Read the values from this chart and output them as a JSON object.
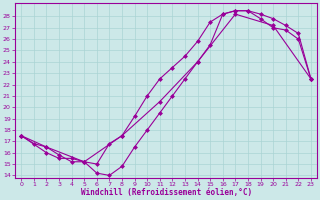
{
  "xlabel": "Windchill (Refroidissement éolien,°C)",
  "xlim_min": -0.5,
  "xlim_max": 23.5,
  "ylim_min": 13.8,
  "ylim_max": 29.2,
  "yticks": [
    14,
    15,
    16,
    17,
    18,
    19,
    20,
    21,
    22,
    23,
    24,
    25,
    26,
    27,
    28
  ],
  "xticks": [
    0,
    1,
    2,
    3,
    4,
    5,
    6,
    7,
    8,
    9,
    10,
    11,
    12,
    13,
    14,
    15,
    16,
    17,
    18,
    19,
    20,
    21,
    22,
    23
  ],
  "line_color": "#990099",
  "marker": "D",
  "marker_size": 2.5,
  "lw": 0.8,
  "bg_color": "#cce8e8",
  "grid_color": "#aad4d4",
  "line1_x": [
    0,
    1,
    2,
    3,
    4,
    5,
    6,
    7,
    8,
    9,
    10,
    11,
    12,
    13,
    14,
    15,
    16,
    17,
    18,
    19,
    20,
    21,
    22,
    23
  ],
  "line1_y": [
    17.5,
    16.8,
    16.5,
    15.8,
    15.2,
    15.2,
    14.2,
    14.0,
    14.8,
    16.5,
    18.0,
    19.5,
    21.0,
    22.5,
    24.0,
    25.5,
    28.2,
    28.5,
    28.5,
    28.2,
    27.8,
    27.2,
    26.5,
    22.5
  ],
  "line2_x": [
    0,
    2,
    3,
    4,
    5,
    6,
    7,
    8,
    9,
    10,
    11,
    12,
    13,
    14,
    15,
    16,
    17,
    18,
    19,
    20,
    21,
    22,
    23
  ],
  "line2_y": [
    17.5,
    16.0,
    15.5,
    15.5,
    15.2,
    15.0,
    16.8,
    17.5,
    19.2,
    21.0,
    22.5,
    23.5,
    24.5,
    25.8,
    27.5,
    28.2,
    28.5,
    28.5,
    27.8,
    27.0,
    26.8,
    26.0,
    22.5
  ],
  "line3_x": [
    0,
    2,
    5,
    8,
    11,
    14,
    17,
    20,
    23
  ],
  "line3_y": [
    17.5,
    16.5,
    15.2,
    17.5,
    20.5,
    24.0,
    28.2,
    27.2,
    22.5
  ]
}
